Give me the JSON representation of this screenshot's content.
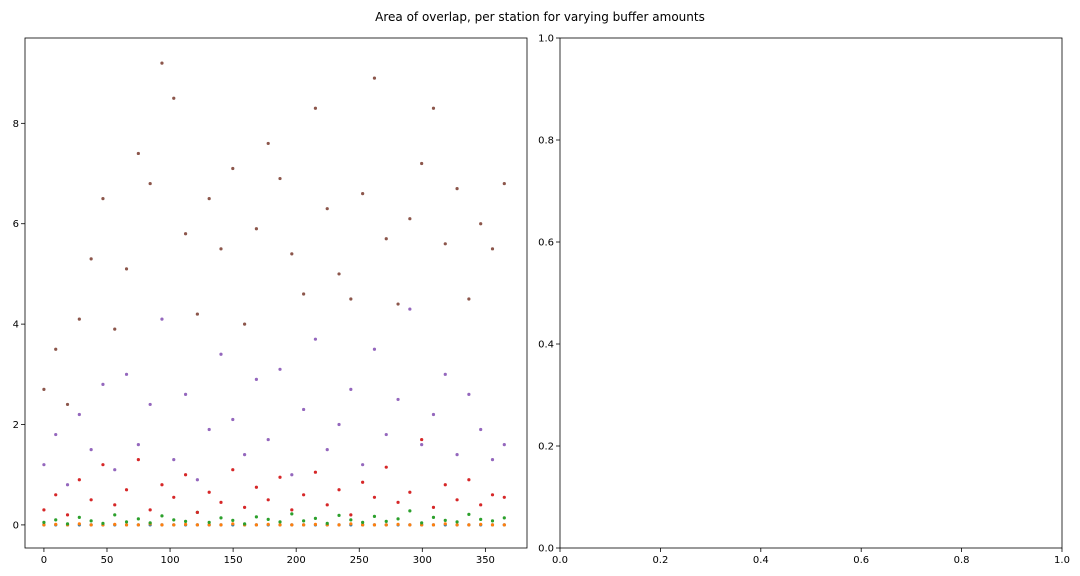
{
  "figure": {
    "suptitle": "Area of overlap, per station for varying buffer amounts"
  },
  "chart_data": [
    {
      "type": "scatter",
      "title": "",
      "xlabel": "",
      "ylabel": "",
      "xlim": [
        -15,
        383
      ],
      "ylim": [
        -0.46,
        9.7
      ],
      "xticks": [
        0,
        50,
        100,
        150,
        200,
        250,
        300,
        350
      ],
      "yticks": [
        0,
        2,
        4,
        6,
        8
      ],
      "grid": false,
      "legend": "none",
      "x_range_note": "one point per station per series, x = 0..365",
      "series": [
        {
          "color": "#1f77b4",
          "values": [
            0.0,
            0.0,
            0.0,
            0.0,
            0.0,
            0.0,
            0.0,
            0.0,
            0.0,
            0.0,
            0.0,
            0.0,
            0.0,
            0.0,
            0.0,
            0.0,
            0.0,
            0.0,
            0.0,
            0.0,
            0.0,
            0.0,
            0.0,
            0.0,
            0.0,
            0.0,
            0.0,
            0.0,
            0.0,
            0.0,
            0.0,
            0.0,
            0.0,
            0.0,
            0.0,
            0.0,
            0.0,
            0.0,
            0.0,
            0.0
          ]
        },
        {
          "color": "#ff7f0e",
          "values": [
            0.0,
            0.01,
            0.0,
            0.02,
            0.0,
            0.0,
            0.01,
            0.0,
            0.0,
            0.02,
            0.0,
            0.0,
            0.01,
            0.0,
            0.0,
            0.0,
            0.02,
            0.0,
            0.0,
            0.01,
            0.0,
            0.0,
            0.0,
            0.01,
            0.0,
            0.0,
            0.02,
            0.0,
            0.0,
            0.0,
            0.01,
            0.0,
            0.0,
            0.0,
            0.02,
            0.0,
            0.0,
            0.01,
            0.0,
            0.0
          ]
        },
        {
          "color": "#2ca02c",
          "values": [
            0.05,
            0.1,
            0.02,
            0.15,
            0.08,
            0.03,
            0.2,
            0.06,
            0.12,
            0.04,
            0.18,
            0.1,
            0.07,
            0.25,
            0.05,
            0.14,
            0.09,
            0.02,
            0.16,
            0.11,
            0.06,
            0.22,
            0.08,
            0.13,
            0.03,
            0.19,
            0.1,
            0.05,
            0.17,
            0.07,
            0.12,
            0.28,
            0.04,
            0.15,
            0.09,
            0.06,
            0.21,
            0.11,
            0.08,
            0.14
          ]
        },
        {
          "color": "#d62728",
          "values": [
            0.3,
            0.6,
            0.2,
            0.9,
            0.5,
            1.2,
            0.4,
            0.7,
            1.3,
            0.3,
            0.8,
            0.55,
            1.0,
            0.25,
            0.65,
            0.45,
            1.1,
            0.35,
            0.75,
            0.5,
            0.95,
            0.3,
            0.6,
            1.05,
            0.4,
            0.7,
            0.2,
            0.85,
            0.55,
            1.15,
            0.45,
            0.65,
            1.7,
            0.35,
            0.8,
            0.5,
            0.9,
            0.4,
            0.6,
            0.55
          ]
        },
        {
          "color": "#9467bd",
          "values": [
            1.2,
            1.8,
            0.8,
            2.2,
            1.5,
            2.8,
            1.1,
            3.0,
            1.6,
            2.4,
            4.1,
            1.3,
            2.6,
            0.9,
            1.9,
            3.4,
            2.1,
            1.4,
            2.9,
            1.7,
            3.1,
            1.0,
            2.3,
            3.7,
            1.5,
            2.0,
            2.7,
            1.2,
            3.5,
            1.8,
            2.5,
            4.3,
            1.6,
            2.2,
            3.0,
            1.4,
            2.6,
            1.9,
            1.3,
            1.6
          ]
        },
        {
          "color": "#8c564b",
          "values": [
            2.7,
            3.5,
            2.4,
            4.1,
            5.3,
            6.5,
            3.9,
            5.1,
            7.4,
            6.8,
            9.2,
            8.5,
            5.8,
            4.2,
            6.5,
            5.5,
            7.1,
            4.0,
            5.9,
            7.6,
            6.9,
            5.4,
            4.6,
            8.3,
            6.3,
            5.0,
            4.5,
            6.6,
            8.9,
            5.7,
            4.4,
            6.1,
            7.2,
            8.3,
            5.6,
            6.7,
            4.5,
            6.0,
            5.5,
            6.8
          ]
        }
      ]
    },
    {
      "type": "scatter",
      "title": "",
      "xlabel": "",
      "ylabel": "",
      "xlim": [
        0,
        1
      ],
      "ylim": [
        0,
        1
      ],
      "xticks": [
        "0.0",
        "0.2",
        "0.4",
        "0.6",
        "0.8",
        "1.0"
      ],
      "yticks": [
        "0.0",
        "0.2",
        "0.4",
        "0.6",
        "0.8",
        "1.0"
      ],
      "grid": false,
      "legend": "none",
      "series": []
    }
  ]
}
